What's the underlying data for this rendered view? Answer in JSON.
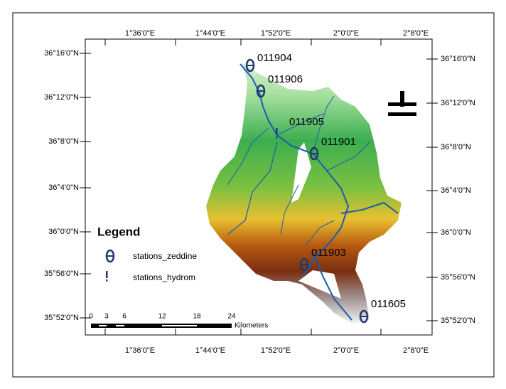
{
  "map": {
    "x_labels_top": [
      "1°36'0\"E",
      "1°44'0\"E",
      "1°52'0\"E",
      "2°0'0\"E",
      "2°8'0\"E"
    ],
    "x_labels_bottom": [
      "1°36'0\"E",
      "1°44'0\"E",
      "1°52'0\"E",
      "2°0'0\"E",
      "2°8'0\"E"
    ],
    "y_labels_left": [
      "36°16'0\"N",
      "36°12'0\"N",
      "36°8'0\"N",
      "36°4'0\"N",
      "36°0'0\"N",
      "35°56'0\"N",
      "35°52'0\"N"
    ],
    "y_labels_right": [
      "36°16'0\"N",
      "36°12'0\"N",
      "36°8'0\"N",
      "36°4'0\"N",
      "36°0'0\"N",
      "35°56'0\"N",
      "35°52'0\"N"
    ],
    "stations": [
      "011904",
      "011906",
      "011905",
      "011901",
      "011903",
      "011605"
    ],
    "legend": {
      "title": "Legend",
      "items": [
        "stations_zeddine",
        "stations_hydrom"
      ]
    },
    "scale": {
      "ticks": [
        "0",
        "3",
        "6",
        "12",
        "18",
        "24"
      ],
      "unit": "Kilometers"
    }
  }
}
